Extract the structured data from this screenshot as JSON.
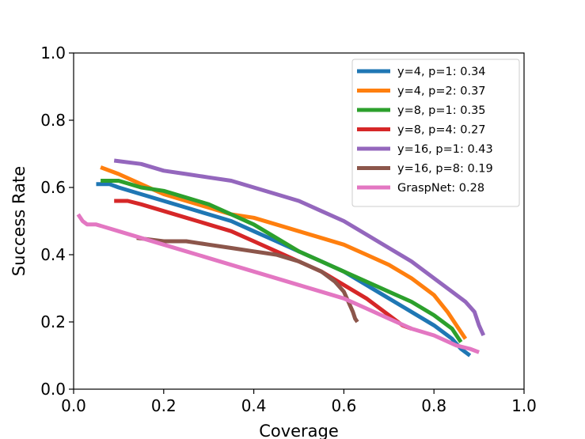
{
  "chart_data": {
    "type": "line",
    "title": "",
    "xlabel": "Coverage",
    "ylabel": "Success Rate",
    "xlim": [
      0.0,
      1.0
    ],
    "ylim": [
      0.0,
      1.0
    ],
    "xticks": [
      "0.0",
      "0.2",
      "0.4",
      "0.6",
      "0.8",
      "1.0"
    ],
    "yticks": [
      "0.0",
      "0.2",
      "0.4",
      "0.6",
      "0.8",
      "1.0"
    ],
    "grid": false,
    "legend_position": "top-right",
    "series": [
      {
        "name": "y=4, p=1: 0.34",
        "color": "#1f77b4",
        "x": [
          0.05,
          0.08,
          0.1,
          0.15,
          0.2,
          0.25,
          0.3,
          0.35,
          0.4,
          0.45,
          0.5,
          0.55,
          0.6,
          0.65,
          0.7,
          0.75,
          0.8,
          0.84,
          0.86,
          0.88
        ],
        "y": [
          0.61,
          0.61,
          0.6,
          0.58,
          0.56,
          0.54,
          0.52,
          0.5,
          0.47,
          0.44,
          0.41,
          0.38,
          0.35,
          0.31,
          0.27,
          0.23,
          0.19,
          0.15,
          0.12,
          0.1
        ]
      },
      {
        "name": "y=4, p=2: 0.37",
        "color": "#ff7f0e",
        "x": [
          0.06,
          0.1,
          0.15,
          0.2,
          0.25,
          0.3,
          0.35,
          0.4,
          0.45,
          0.5,
          0.55,
          0.6,
          0.65,
          0.7,
          0.75,
          0.8,
          0.83,
          0.85,
          0.87
        ],
        "y": [
          0.66,
          0.64,
          0.61,
          0.58,
          0.56,
          0.54,
          0.52,
          0.51,
          0.49,
          0.47,
          0.45,
          0.43,
          0.4,
          0.37,
          0.33,
          0.28,
          0.23,
          0.19,
          0.15
        ]
      },
      {
        "name": "y=8, p=1: 0.35",
        "color": "#2ca02c",
        "x": [
          0.06,
          0.1,
          0.15,
          0.2,
          0.25,
          0.3,
          0.35,
          0.4,
          0.45,
          0.5,
          0.55,
          0.6,
          0.65,
          0.7,
          0.75,
          0.8,
          0.84,
          0.86
        ],
        "y": [
          0.62,
          0.62,
          0.6,
          0.59,
          0.57,
          0.55,
          0.52,
          0.49,
          0.45,
          0.41,
          0.38,
          0.35,
          0.32,
          0.29,
          0.26,
          0.22,
          0.18,
          0.14
        ]
      },
      {
        "name": "y=8, p=4: 0.27",
        "color": "#d62728",
        "x": [
          0.09,
          0.12,
          0.15,
          0.2,
          0.25,
          0.3,
          0.35,
          0.4,
          0.45,
          0.5,
          0.55,
          0.6,
          0.65,
          0.7,
          0.73,
          0.75
        ],
        "y": [
          0.56,
          0.56,
          0.55,
          0.53,
          0.51,
          0.49,
          0.47,
          0.44,
          0.41,
          0.38,
          0.35,
          0.31,
          0.27,
          0.22,
          0.19,
          0.18
        ]
      },
      {
        "name": "y=16, p=1: 0.43",
        "color": "#9467bd",
        "x": [
          0.09,
          0.15,
          0.2,
          0.25,
          0.3,
          0.35,
          0.4,
          0.45,
          0.5,
          0.55,
          0.6,
          0.65,
          0.7,
          0.75,
          0.8,
          0.84,
          0.87,
          0.89,
          0.9,
          0.91
        ],
        "y": [
          0.68,
          0.67,
          0.65,
          0.64,
          0.63,
          0.62,
          0.6,
          0.58,
          0.56,
          0.53,
          0.5,
          0.46,
          0.42,
          0.38,
          0.33,
          0.29,
          0.26,
          0.23,
          0.19,
          0.16
        ]
      },
      {
        "name": "y=16, p=8: 0.19",
        "color": "#8c564b",
        "x": [
          0.14,
          0.2,
          0.25,
          0.3,
          0.35,
          0.4,
          0.45,
          0.5,
          0.55,
          0.58,
          0.6,
          0.61,
          0.62,
          0.625,
          0.63
        ],
        "y": [
          0.45,
          0.44,
          0.44,
          0.43,
          0.42,
          0.41,
          0.4,
          0.38,
          0.35,
          0.32,
          0.29,
          0.26,
          0.23,
          0.21,
          0.2
        ]
      },
      {
        "name": "GraspNet: 0.28",
        "color": "#e377c2",
        "x": [
          0.01,
          0.02,
          0.03,
          0.05,
          0.1,
          0.15,
          0.2,
          0.25,
          0.3,
          0.35,
          0.4,
          0.45,
          0.5,
          0.55,
          0.6,
          0.65,
          0.7,
          0.75,
          0.8,
          0.85,
          0.88,
          0.9
        ],
        "y": [
          0.52,
          0.5,
          0.49,
          0.49,
          0.47,
          0.45,
          0.43,
          0.41,
          0.39,
          0.37,
          0.35,
          0.33,
          0.31,
          0.29,
          0.27,
          0.24,
          0.21,
          0.18,
          0.16,
          0.13,
          0.12,
          0.11
        ]
      }
    ]
  }
}
